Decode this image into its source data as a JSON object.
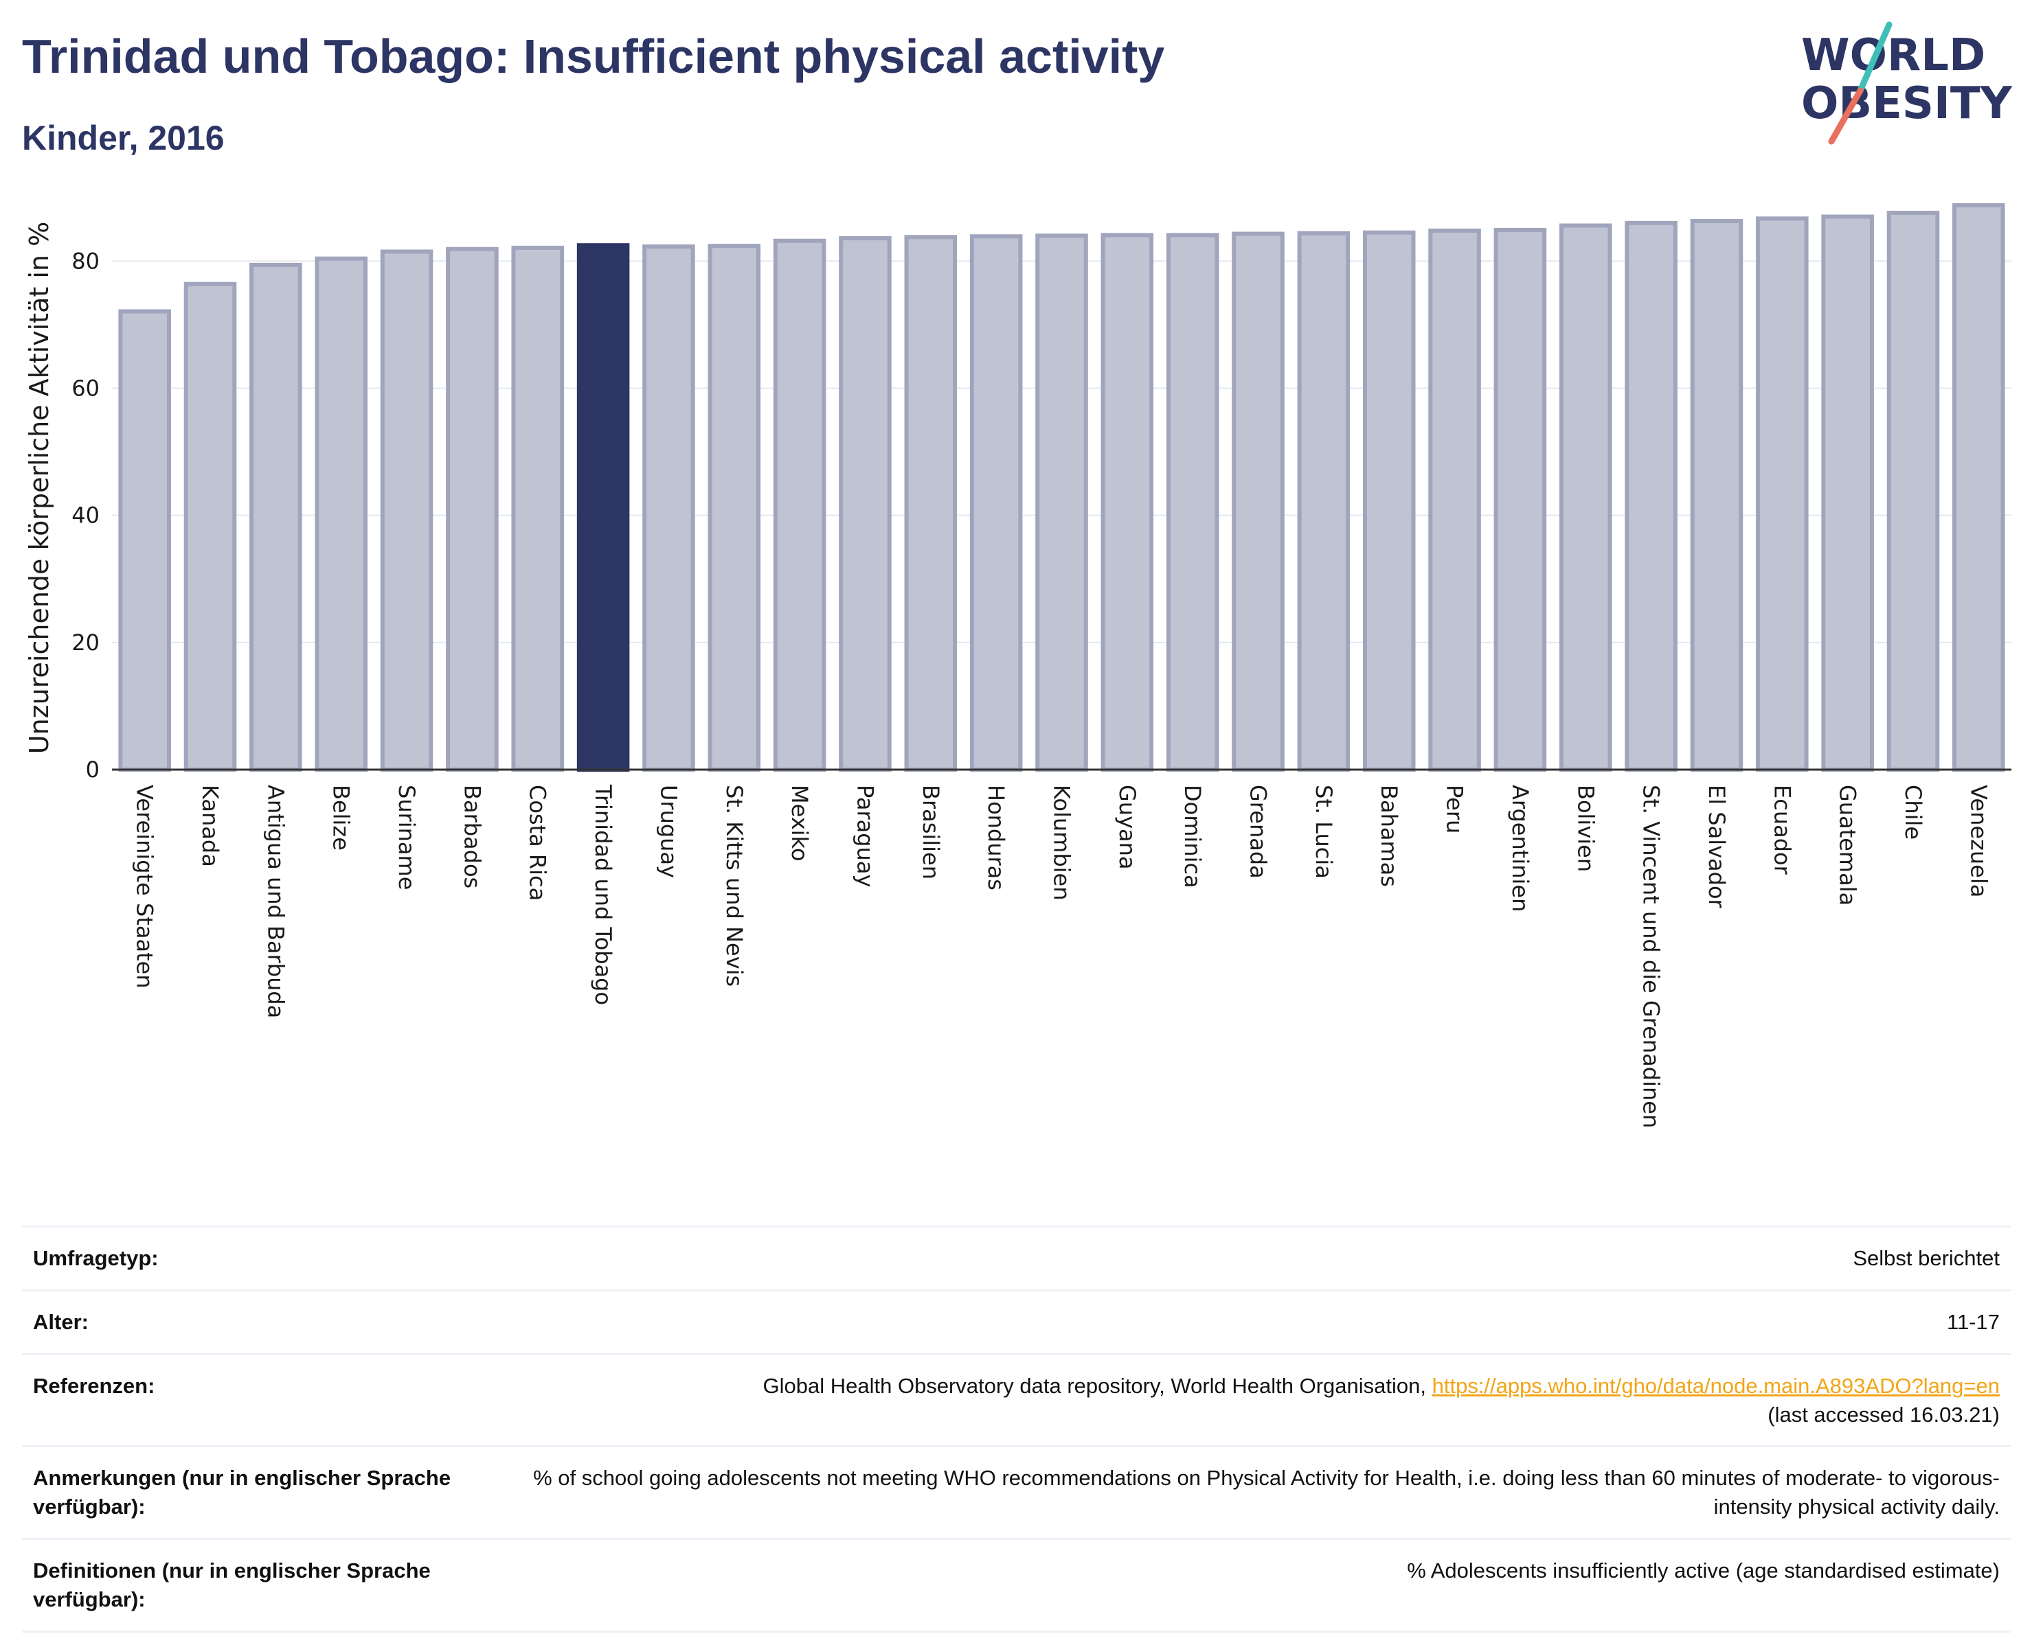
{
  "header": {
    "title": "Trinidad und Tobago: Insufficient physical activity",
    "subtitle": "Kinder, 2016"
  },
  "logo": {
    "line1": "WORLD",
    "line2": "OBESITY",
    "colors": {
      "text": "#2c3563",
      "slash_teal": "#3ebfb8",
      "slash_coral": "#e8705d"
    }
  },
  "colors": {
    "bar_fill": "#c0c3d1",
    "bar_stroke": "#a0a5bd",
    "highlight": "#2c3563",
    "grid": "#e6e8ef",
    "axis": "#333333"
  },
  "chart_data": {
    "type": "bar",
    "ylabel": "Unzureichende körperliche Aktivität in %",
    "ylim": [
      0,
      93
    ],
    "yticks": [
      0,
      20,
      40,
      60,
      80
    ],
    "grid": true,
    "highlight": "Trinidad und Tobago",
    "categories": [
      "Vereinigte Staaten",
      "Kanada",
      "Antigua und Barbuda",
      "Belize",
      "Suriname",
      "Barbados",
      "Costa Rica",
      "Trinidad und Tobago",
      "Uruguay",
      "St. Kitts und Nevis",
      "Mexiko",
      "Paraguay",
      "Brasilien",
      "Honduras",
      "Kolumbien",
      "Guyana",
      "Dominica",
      "Grenada",
      "St. Lucia",
      "Bahamas",
      "Peru",
      "Argentinien",
      "Bolivien",
      "St. Vincent und die Grenadinen",
      "El Salvador",
      "Ecuador",
      "Guatemala",
      "Chile",
      "Venezuela"
    ],
    "values": [
      72.1,
      76.4,
      79.4,
      80.4,
      81.5,
      81.9,
      82.1,
      82.5,
      82.3,
      82.4,
      83.2,
      83.6,
      83.8,
      83.9,
      84.0,
      84.1,
      84.1,
      84.3,
      84.4,
      84.5,
      84.8,
      84.9,
      85.6,
      86.0,
      86.3,
      86.7,
      87.0,
      87.6,
      88.8
    ]
  },
  "info": {
    "survey_type": {
      "label": "Umfragetyp:",
      "value": "Selbst berichtet"
    },
    "age": {
      "label": "Alter:",
      "value": "11-17"
    },
    "references": {
      "label": "Referenzen:",
      "text": "Global Health Observatory data repository, World Health Organisation, ",
      "link": "https://apps.who.int/gho/data/node.main.A893ADO?lang=en",
      "accessed": "(last accessed 16.03.21)"
    },
    "notes": {
      "label": "Anmerkungen (nur in englischer Sprache verfügbar):",
      "value": "% of school going adolescents not meeting WHO recommendations on Physical Activity for Health, i.e. doing less than 60 minutes of moderate- to vigorous-intensity physical activity daily."
    },
    "definitions": {
      "label": "Definitionen (nur in englischer Sprache verfügbar):",
      "value": "% Adolescents insufficiently active (age standardised estimate)"
    }
  }
}
